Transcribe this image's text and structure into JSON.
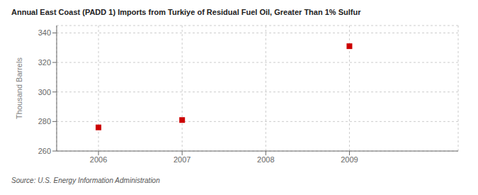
{
  "chart_data": {
    "type": "scatter",
    "title": "Annual East Coast (PADD 1) Imports from Turkiye of Residual Fuel Oil, Greater Than 1% Sulfur",
    "ylabel": "Thousand Barrels",
    "annotations": [
      "Source: U.S. Energy Information Administration"
    ],
    "x": [
      2006,
      2007,
      2009
    ],
    "values": [
      276,
      281,
      331
    ],
    "color": "#cc0000",
    "marker": "square",
    "xlim": [
      2005.5,
      2010.3
    ],
    "xticks": [
      2006,
      2007,
      2008,
      2009
    ],
    "ylim": [
      260,
      345
    ],
    "yticks": [
      260,
      280,
      300,
      320,
      340
    ],
    "grid": true
  }
}
